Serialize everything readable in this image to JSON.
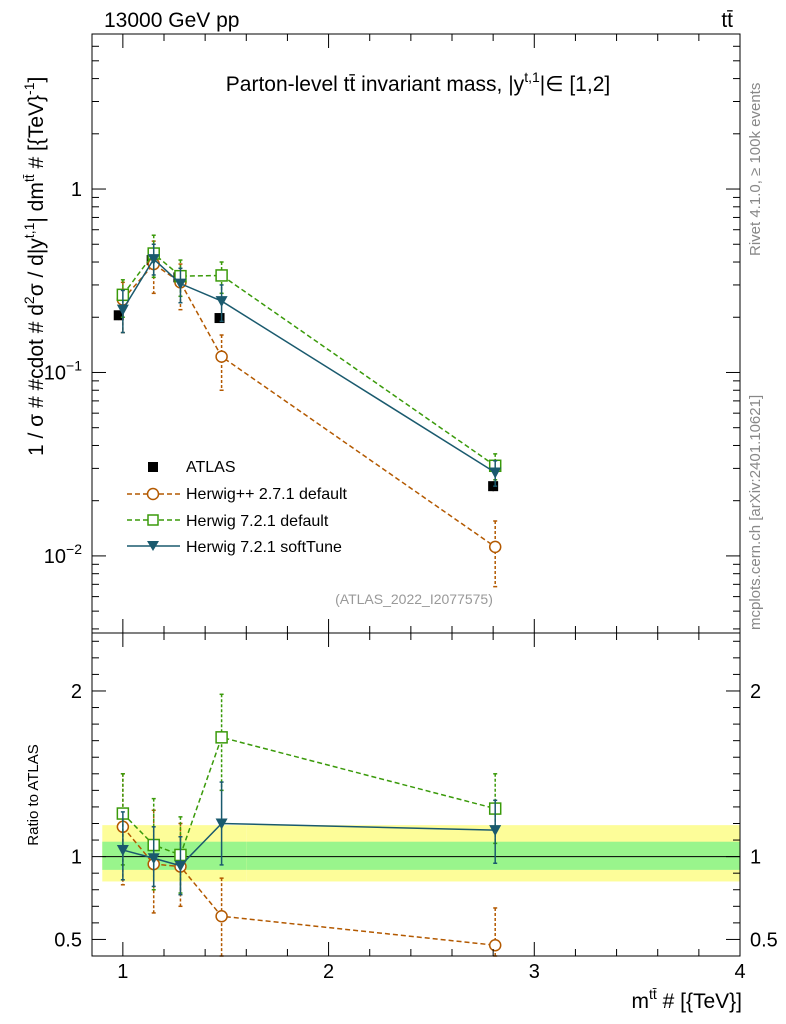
{
  "header": {
    "energy_label": "13000 GeV pp",
    "process_label": "tt̄"
  },
  "side_labels": {
    "rivet": "Rivet 4.1.0, ≥ 100k events",
    "mcplots": "mcplots.cern.ch [arXiv:2401.10621]"
  },
  "colors": {
    "atlas": "#000000",
    "herwigpp": "#b35900",
    "herwig721": "#3a9a0a",
    "softtune": "#1a5a6e",
    "band_inner": "#99f58c",
    "band_outer": "#fdfd99"
  },
  "chart_data": [
    {
      "type": "scatter",
      "panel": "main",
      "title": "Parton-level tt̄ invariant mass, |y^{t,1}| ∈ [1,2]",
      "title_parts": {
        "pre": "Parton-level tt̄ invariant mass, |y",
        "sup": "t,1",
        "post": "|∈ [1,2]"
      },
      "ylabel": "1 / σ # #cdot # d²σ / d|y^{t,1}| dm^{tt̄} # [{TeV}⁻¹]",
      "ylabel_parts": [
        "1 / σ # #cdot # d",
        "2",
        "σ / d|y",
        "t,1",
        "| dm",
        "tt̄",
        " # [{TeV}",
        "-1",
        "]"
      ],
      "yscale": "log",
      "ylim": [
        0.0038,
        7.0
      ],
      "xlim": [
        0.85,
        4.0
      ],
      "y_ticks": [
        {
          "value": 1,
          "label": "1"
        },
        {
          "value": 0.1,
          "label": "10",
          "exp": "−1"
        },
        {
          "value": 0.01,
          "label": "10",
          "exp": "−2"
        }
      ],
      "watermark": "(ATLAS_2022_I2077575)",
      "legend": [
        "ATLAS",
        "Herwig++ 2.7.1 default",
        "Herwig 7.2.1 default",
        "Herwig 7.2.1 softTune"
      ],
      "series": [
        {
          "name": "ATLAS",
          "marker": "square-filled",
          "line": "none",
          "x": [
            0.98,
            1.14,
            1.27,
            1.47,
            2.8
          ],
          "y": [
            0.205,
            0.41,
            0.33,
            0.198,
            0.024
          ],
          "yerr": [
            0.012,
            0.02,
            0.017,
            0.012,
            0.0015
          ]
        },
        {
          "name": "Herwig++ 2.7.1 default",
          "marker": "circle-open",
          "line": "dashed",
          "x": [
            1.0,
            1.15,
            1.28,
            1.48,
            2.81
          ],
          "y": [
            0.25,
            0.39,
            0.31,
            0.122,
            0.0112
          ],
          "ylo": [
            0.165,
            0.27,
            0.22,
            0.08,
            0.0068
          ],
          "yhi": [
            0.31,
            0.52,
            0.39,
            0.16,
            0.0155
          ]
        },
        {
          "name": "Herwig 7.2.1 default",
          "marker": "square-open",
          "line": "dashed",
          "x": [
            1.0,
            1.15,
            1.28,
            1.48,
            2.81
          ],
          "y": [
            0.265,
            0.445,
            0.335,
            0.338,
            0.031
          ],
          "ylo": [
            0.2,
            0.33,
            0.26,
            0.27,
            0.026
          ],
          "yhi": [
            0.32,
            0.56,
            0.41,
            0.4,
            0.036
          ]
        },
        {
          "name": "Herwig 7.2.1 softTune",
          "marker": "triangle-down-filled",
          "line": "solid",
          "x": [
            1.0,
            1.15,
            1.28,
            1.48,
            2.81
          ],
          "y": [
            0.22,
            0.415,
            0.305,
            0.245,
            0.0285
          ],
          "ylo": [
            0.165,
            0.34,
            0.24,
            0.19,
            0.024
          ],
          "yhi": [
            0.28,
            0.5,
            0.37,
            0.3,
            0.033
          ]
        }
      ]
    },
    {
      "type": "scatter",
      "panel": "ratio",
      "ylabel": "Ratio to ATLAS",
      "xlabel": "m^{tt̄} # [{TeV}]",
      "xlabel_parts": [
        "m",
        "tt̄",
        " # [{TeV}]"
      ],
      "ylim": [
        0.4,
        2.35
      ],
      "xlim": [
        0.85,
        4.0
      ],
      "x_ticks": [
        1,
        2,
        3,
        4
      ],
      "y_ticks": [
        0.5,
        1,
        2
      ],
      "y_tick_labels": [
        "0.5",
        "1",
        "2"
      ],
      "reference_line": 1.0,
      "bands": {
        "edges": [
          0.9,
          1.6,
          4.0
        ],
        "inner": [
          [
            0.92,
            1.09
          ],
          [
            0.92,
            1.09
          ]
        ],
        "outer": [
          [
            0.85,
            1.19
          ],
          [
            0.85,
            1.19
          ]
        ]
      },
      "series": [
        {
          "name": "Herwig++ 2.7.1 default",
          "x": [
            1.0,
            1.15,
            1.28,
            1.48,
            2.81
          ],
          "y": [
            1.18,
            0.955,
            0.94,
            0.64,
            0.465
          ],
          "ylo": [
            0.83,
            0.66,
            0.7,
            0.4,
            0.32
          ],
          "yhi": [
            1.5,
            1.28,
            1.2,
            0.87,
            0.69
          ]
        },
        {
          "name": "Herwig 7.2.1 default",
          "x": [
            1.0,
            1.15,
            1.28,
            1.48,
            2.81
          ],
          "y": [
            1.26,
            1.07,
            1.01,
            1.72,
            1.29
          ],
          "ylo": [
            0.95,
            0.8,
            0.78,
            1.4,
            1.08
          ],
          "yhi": [
            1.5,
            1.35,
            1.24,
            1.98,
            1.5
          ]
        },
        {
          "name": "Herwig 7.2.1 softTune",
          "x": [
            1.0,
            1.15,
            1.28,
            1.48,
            2.81
          ],
          "y": [
            1.04,
            0.99,
            0.945,
            1.2,
            1.16
          ],
          "ylo": [
            0.86,
            0.82,
            0.77,
            0.95,
            0.96
          ],
          "yhi": [
            1.27,
            1.18,
            1.12,
            1.45,
            1.34
          ]
        }
      ]
    }
  ]
}
